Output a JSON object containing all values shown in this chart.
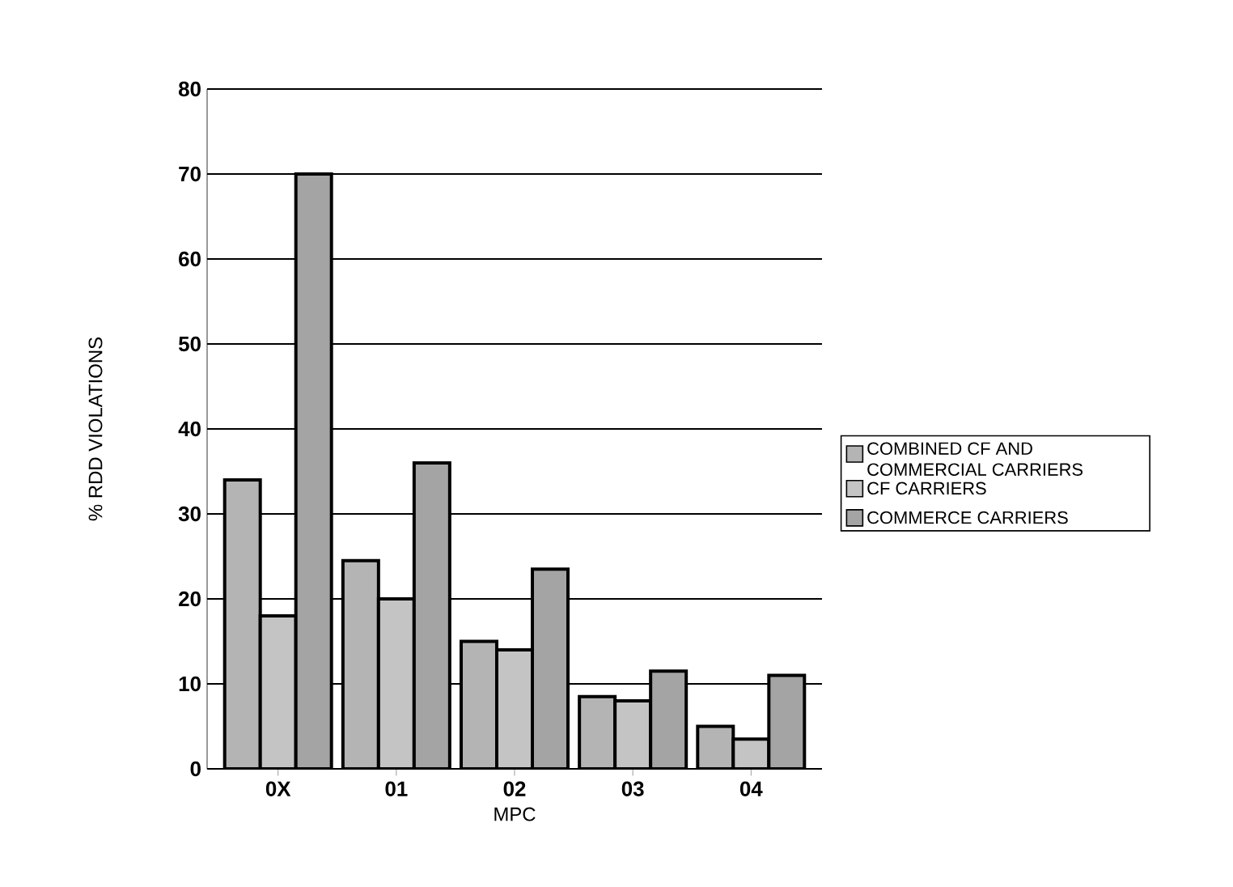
{
  "chart_data": {
    "type": "bar",
    "xlabel": "MPC",
    "ylabel": "% RDD VIOLATIONS",
    "categories": [
      "0X",
      "01",
      "02",
      "03",
      "04"
    ],
    "series": [
      {
        "name": "COMBINED CF AND COMMERCIAL CARRIERS",
        "color": "#b4b4b4",
        "values": [
          34,
          24.5,
          15,
          8.5,
          5
        ]
      },
      {
        "name": "CF CARRIERS",
        "color": "#c4c4c4",
        "values": [
          18,
          20,
          14,
          8,
          3.5
        ]
      },
      {
        "name": "COMMERCE CARRIERS",
        "color": "#a4a4a4",
        "values": [
          70,
          36,
          23.5,
          11.5,
          11
        ]
      }
    ],
    "ylim": [
      0,
      80
    ],
    "yticks": [
      0,
      10,
      20,
      30,
      40,
      50,
      60,
      70,
      80
    ],
    "grid": "y",
    "legend": "right"
  }
}
